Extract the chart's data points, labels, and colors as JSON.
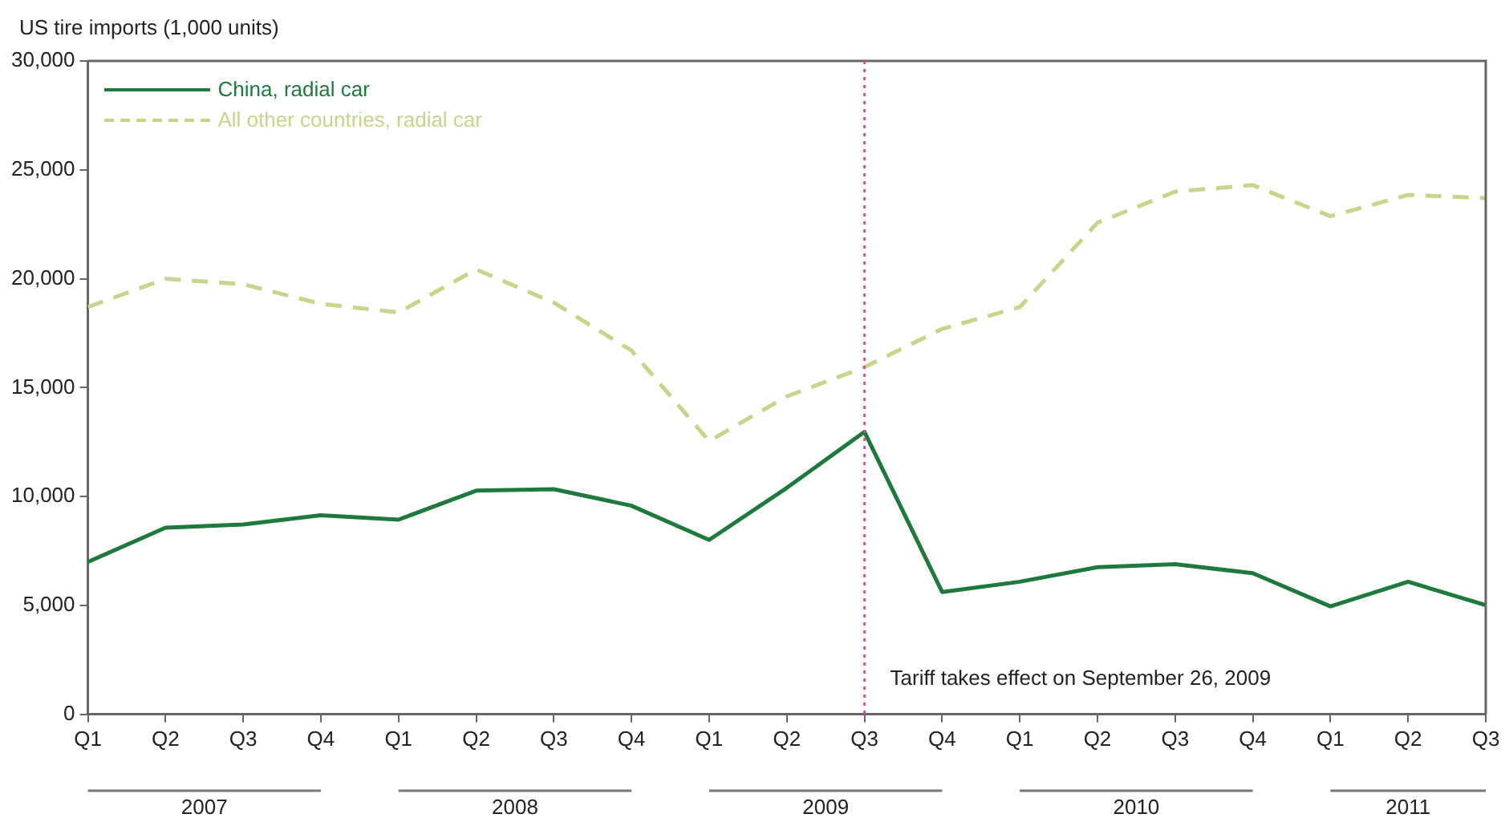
{
  "chart_data": {
    "type": "line",
    "ylabel": "US tire imports (1,000 units)",
    "x": [
      "2007-01",
      "2007-04",
      "2007-07",
      "2007-10",
      "2008-01",
      "2008-04",
      "2008-07",
      "2008-10",
      "2009-01",
      "2009-04",
      "2009-07",
      "2009-10",
      "2010-01",
      "2010-04",
      "2010-07",
      "2010-10",
      "2011-01",
      "2011-04",
      "2011-07"
    ],
    "xlim": [
      "2007-01",
      "2011-07"
    ],
    "xticks": [
      {
        "value": "2007-01",
        "label": "Q1"
      },
      {
        "value": "2007-04",
        "label": "Q2"
      },
      {
        "value": "2007-07",
        "label": "Q3"
      },
      {
        "value": "2007-10",
        "label": "Q4"
      },
      {
        "value": "2008-01",
        "label": "Q1"
      },
      {
        "value": "2008-04",
        "label": "Q2"
      },
      {
        "value": "2008-07",
        "label": "Q3"
      },
      {
        "value": "2008-10",
        "label": "Q4"
      },
      {
        "value": "2009-01",
        "label": "Q1"
      },
      {
        "value": "2009-04",
        "label": "Q2"
      },
      {
        "value": "2009-07",
        "label": "Q3"
      },
      {
        "value": "2009-10",
        "label": "Q4"
      },
      {
        "value": "2010-01",
        "label": "Q1"
      },
      {
        "value": "2010-04",
        "label": "Q2"
      },
      {
        "value": "2010-07",
        "label": "Q3"
      },
      {
        "value": "2010-10",
        "label": "Q4"
      },
      {
        "value": "2011-01",
        "label": "Q1"
      },
      {
        "value": "2011-04",
        "label": "Q2"
      },
      {
        "value": "2011-07",
        "label": "Q3"
      }
    ],
    "series": [
      {
        "name": "China, radial car",
        "color": "#1e7a3c",
        "line_style": "solid",
        "values": [
          7000,
          8570,
          8720,
          9140,
          8940,
          10270,
          10340,
          9580,
          8010,
          10400,
          12970,
          5620,
          6090,
          6760,
          6900,
          6480,
          4960,
          6090,
          5010
        ]
      },
      {
        "name": "All other countries, radial car",
        "color": "#c5d58a",
        "line_style": "dashed",
        "values": [
          18700,
          20000,
          19750,
          18850,
          18450,
          20430,
          18900,
          16700,
          12550,
          14600,
          15940,
          17700,
          18700,
          22570,
          24000,
          24300,
          22870,
          23850,
          23700
        ]
      }
    ],
    "ylim": [
      0,
      30000
    ],
    "yticks": [
      0,
      {
        "value": 5000,
        "label": "5,000"
      },
      {
        "value": 10000,
        "label": "10,000"
      },
      {
        "value": 15000,
        "label": "15,000"
      },
      {
        "value": 20000,
        "label": "20,000"
      },
      {
        "value": 25000,
        "label": "25,000"
      },
      {
        "value": 30000,
        "label": "30,000"
      }
    ],
    "grid": false,
    "legend": "top left",
    "marker": "none",
    "ref_lines": [
      {
        "axis": "x",
        "value": "2009-07",
        "label": "Tariff takes effect on September 26, 2009",
        "color": "#e0457b",
        "line_style": "dotted"
      }
    ],
    "annotations": [
      "2007",
      "2008",
      "2009",
      "2010",
      "2011"
    ]
  }
}
